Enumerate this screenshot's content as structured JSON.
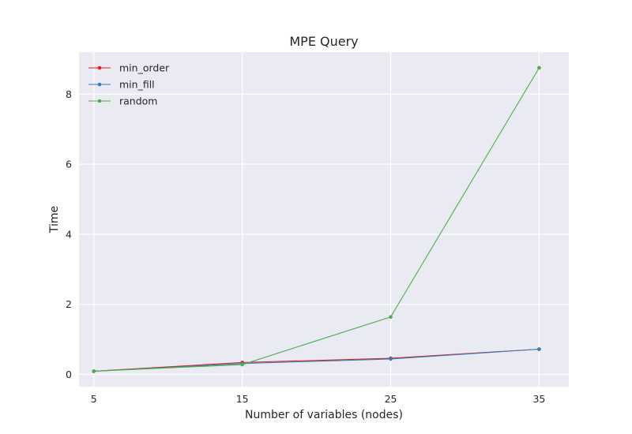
{
  "chart_data": {
    "type": "line",
    "title": "MPE Query",
    "xlabel": "Number of variables (nodes)",
    "ylabel": "Time",
    "x": [
      5,
      15,
      25,
      35
    ],
    "xlim": [
      4,
      37
    ],
    "ylim": [
      -0.35,
      9.2
    ],
    "xticks": [
      5,
      15,
      25,
      35
    ],
    "yticks": [
      0,
      2,
      4,
      6,
      8
    ],
    "grid": true,
    "legend_position": "top-left",
    "background_color": "#EAEAF2",
    "series": [
      {
        "name": "min_order",
        "color": "#E41A1C",
        "values": [
          0.09,
          0.34,
          0.46,
          0.72
        ]
      },
      {
        "name": "min_fill",
        "color": "#377EB8",
        "values": [
          0.09,
          0.31,
          0.44,
          0.72
        ]
      },
      {
        "name": "random",
        "color": "#4DAF4A",
        "values": [
          0.09,
          0.28,
          1.64,
          8.75
        ]
      }
    ]
  }
}
